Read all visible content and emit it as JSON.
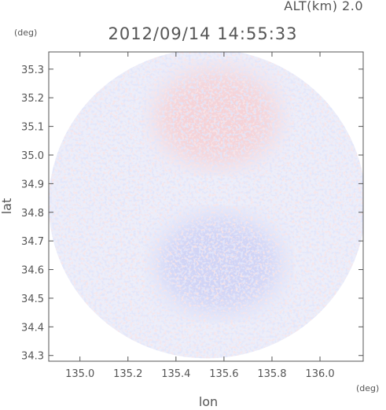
{
  "header": {
    "alt_label": "ALT(km) 2.0",
    "datetime": "2012/09/14 14:55:33",
    "y_unit": "(deg)",
    "x_unit": "(deg)"
  },
  "chart_data": {
    "type": "heatmap",
    "title": "2012/09/14 14:55:33",
    "subtitle": "ALT(km) 2.0",
    "xlabel": "lon",
    "ylabel": "lat",
    "x_unit": "(deg)",
    "y_unit": "(deg)",
    "xlim": [
      134.87,
      136.18
    ],
    "ylim": [
      34.28,
      35.36
    ],
    "x_ticks": [
      135.0,
      135.2,
      135.4,
      135.6,
      135.8,
      136.0
    ],
    "x_tick_labels": [
      "135.0",
      "135.2",
      "135.4",
      "135.6",
      "135.8",
      "136.0"
    ],
    "y_ticks": [
      34.3,
      34.4,
      34.5,
      34.6,
      34.7,
      34.8,
      34.9,
      35.0,
      35.1,
      35.2,
      35.3
    ],
    "y_tick_labels": [
      "34.3",
      "34.4",
      "34.5",
      "34.6",
      "34.7",
      "34.8",
      "34.9",
      "35.0",
      "35.1",
      "35.2",
      "35.3"
    ],
    "radar_center": [
      135.53,
      34.83
    ],
    "radar_radius_lon": 0.66,
    "radar_radius_lat": 0.54,
    "regions": [
      {
        "name": "positive",
        "color": "#f6d0d4",
        "lon": 135.57,
        "lat": 35.13,
        "rlon": 0.26,
        "rlat": 0.17
      },
      {
        "name": "negative",
        "color": "#cdd2f6",
        "lon": 135.58,
        "lat": 34.62,
        "rlon": 0.26,
        "rlat": 0.17
      }
    ],
    "colors": {
      "background": "#eceefa",
      "positive": "#f4c4ca",
      "negative": "#c4caf3",
      "frame": "#555555"
    },
    "grid": false
  }
}
